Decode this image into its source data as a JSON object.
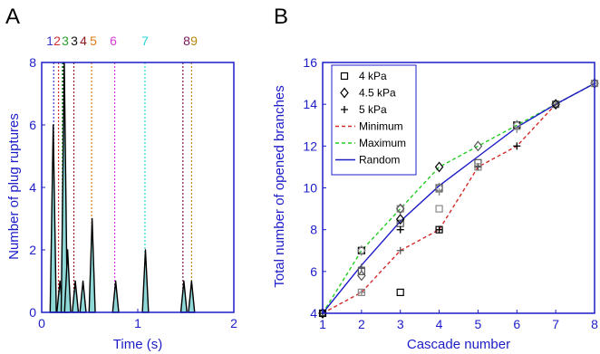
{
  "panels": {
    "a_letter": "A",
    "b_letter": "B"
  },
  "chart_data": [
    {
      "type": "area",
      "panel": "A",
      "xlabel": "Time (s)",
      "ylabel": "Number of plug ruptures",
      "xlim": [
        0,
        2
      ],
      "ylim": [
        0,
        8
      ],
      "xticks": [
        "0",
        "1",
        "2"
      ],
      "yticks": [
        "0",
        "2",
        "4",
        "6",
        "8"
      ],
      "peaks": [
        {
          "t": 0.12,
          "value": 6
        },
        {
          "t": 0.19,
          "value": 1
        },
        {
          "t": 0.235,
          "value": 8
        },
        {
          "t": 0.27,
          "value": 2
        },
        {
          "t": 0.35,
          "value": 1
        },
        {
          "t": 0.43,
          "value": 1
        },
        {
          "t": 0.525,
          "value": 3
        },
        {
          "t": 0.77,
          "value": 1
        },
        {
          "t": 1.08,
          "value": 2
        },
        {
          "t": 1.48,
          "value": 1
        },
        {
          "t": 1.56,
          "value": 1
        }
      ],
      "cascades": [
        {
          "label": "1",
          "t": 0.125,
          "color": "#3a3ac8"
        },
        {
          "label": "2",
          "t": 0.175,
          "color": "#d43030"
        },
        {
          "label": "3",
          "t": 0.215,
          "color": "#2aa02a"
        },
        {
          "label": "3",
          "t": 0.225,
          "color": "#111111"
        },
        {
          "label": "4",
          "t": 0.335,
          "color": "#8b1a1a"
        },
        {
          "label": "5",
          "t": 0.52,
          "color": "#e07b1a"
        },
        {
          "label": "6",
          "t": 0.76,
          "color": "#d63ad6"
        },
        {
          "label": "7",
          "t": 1.075,
          "color": "#2ad6d6"
        },
        {
          "label": "8",
          "t": 1.47,
          "color": "#7a1a5a"
        },
        {
          "label": "9",
          "t": 1.56,
          "color": "#b8860b"
        }
      ]
    },
    {
      "type": "scatter",
      "panel": "B",
      "xlabel": "Cascade number",
      "ylabel": "Total number of opened branches",
      "xlim": [
        1,
        8
      ],
      "ylim": [
        4,
        16
      ],
      "xticks": [
        "1",
        "2",
        "3",
        "4",
        "5",
        "6",
        "7",
        "8"
      ],
      "yticks": [
        "4",
        "6",
        "8",
        "10",
        "12",
        "14",
        "16"
      ],
      "series": [
        {
          "name": "4 kPa",
          "marker": "square",
          "color": "#000000",
          "points": [
            [
              1,
              4
            ],
            [
              2,
              6
            ],
            [
              2,
              5
            ],
            [
              2,
              7
            ],
            [
              3,
              8.3
            ],
            [
              3,
              9
            ],
            [
              3,
              5
            ],
            [
              4,
              10
            ],
            [
              4,
              9
            ],
            [
              4,
              8
            ],
            [
              5,
              11.2
            ],
            [
              5,
              11
            ],
            [
              6,
              13
            ],
            [
              7,
              14
            ],
            [
              8,
              15
            ]
          ]
        },
        {
          "name": "4.5 kPa",
          "marker": "diamond",
          "color": "#000000",
          "points": [
            [
              1,
              4
            ],
            [
              2,
              5.8
            ],
            [
              2,
              7
            ],
            [
              3,
              8.5
            ],
            [
              3,
              9
            ],
            [
              4,
              10
            ],
            [
              4,
              11
            ],
            [
              5,
              12
            ],
            [
              6,
              13
            ],
            [
              7,
              14
            ],
            [
              8,
              15
            ]
          ]
        },
        {
          "name": "5 kPa",
          "marker": "plus",
          "color": "#000000",
          "points": [
            [
              1,
              4
            ],
            [
              2,
              6.2
            ],
            [
              2,
              5
            ],
            [
              3,
              8
            ],
            [
              3,
              7
            ],
            [
              4,
              9.8
            ],
            [
              4,
              8
            ],
            [
              5,
              11
            ],
            [
              6,
              12.8
            ],
            [
              6,
              12
            ],
            [
              7,
              14
            ],
            [
              8,
              15
            ]
          ]
        },
        {
          "name": "Minimum",
          "line": "dashed",
          "color": "#d42a2a",
          "points": [
            [
              1,
              4
            ],
            [
              2,
              5
            ],
            [
              3,
              7
            ],
            [
              4,
              8
            ],
            [
              5,
              11
            ],
            [
              6,
              12
            ],
            [
              7,
              14
            ],
            [
              8,
              15
            ]
          ]
        },
        {
          "name": "Maximum",
          "line": "dashed",
          "color": "#22cc22",
          "points": [
            [
              1,
              4
            ],
            [
              2,
              7
            ],
            [
              3,
              9
            ],
            [
              4,
              11
            ],
            [
              5,
              12
            ],
            [
              6,
              13
            ],
            [
              7,
              14
            ],
            [
              8,
              15
            ]
          ]
        },
        {
          "name": "Random",
          "line": "solid",
          "color": "#1c1cc8",
          "points": [
            [
              1,
              4
            ],
            [
              2,
              6.3
            ],
            [
              3,
              8.4
            ],
            [
              4,
              10.1
            ],
            [
              5,
              11.5
            ],
            [
              6,
              12.9
            ],
            [
              7,
              14
            ],
            [
              8,
              15
            ]
          ]
        }
      ]
    }
  ]
}
